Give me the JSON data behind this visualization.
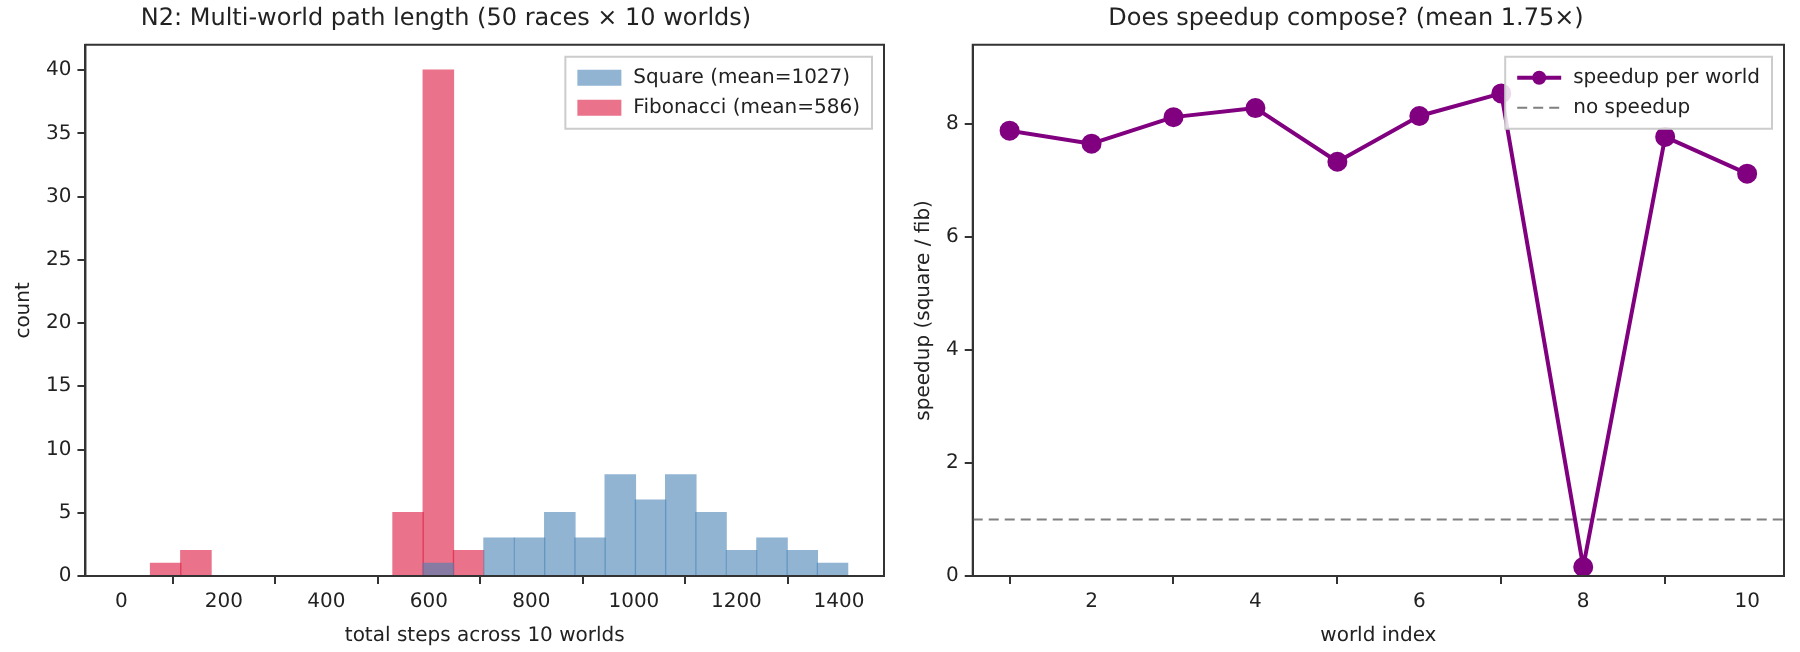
{
  "chart_data": [
    {
      "type": "histogram",
      "title": "N2: Multi-world path length (50 races × 10 worlds)",
      "xlabel": "total steps across 10 worlds",
      "ylabel": "count",
      "bins": [
        57,
        116,
        175,
        234,
        294,
        353,
        412,
        471,
        530,
        589,
        648,
        707,
        767,
        826,
        885,
        944,
        1003,
        1062,
        1121,
        1180,
        1240,
        1299,
        1358,
        1417
      ],
      "series": [
        {
          "name": "Square (mean=1027)",
          "color": "#90b4d2",
          "values": [
            0,
            0,
            0,
            0,
            0,
            0,
            0,
            0,
            0,
            1,
            0,
            3,
            3,
            5,
            3,
            8,
            6,
            8,
            5,
            2,
            3,
            2,
            1
          ]
        },
        {
          "name": "Fibonacci (mean=586)",
          "color": "#ea728a",
          "values": [
            1,
            2,
            0,
            0,
            0,
            0,
            0,
            0,
            5,
            40,
            2,
            0,
            0,
            0,
            0,
            0,
            0,
            0,
            0,
            0,
            0,
            0,
            0
          ]
        }
      ],
      "xlim": [
        -70,
        1488
      ],
      "xticks": [
        0,
        200,
        400,
        600,
        800,
        1000,
        1200,
        1400
      ],
      "ylim": [
        0,
        42
      ],
      "yticks": [
        0,
        5,
        10,
        15,
        20,
        25,
        30,
        35,
        40
      ],
      "legend": "top right"
    },
    {
      "type": "line",
      "title": "Does speedup compose? (mean 1.75×)",
      "xlabel": "world index",
      "ylabel": "speedup (square / fib)",
      "x": [
        1,
        2,
        3,
        4,
        5,
        6,
        7,
        8,
        9,
        10
      ],
      "series": [
        {
          "name": "speedup per world",
          "color": "#800080",
          "values": [
            7.88,
            7.65,
            8.12,
            8.28,
            7.33,
            8.14,
            8.54,
            0.16,
            7.77,
            7.12
          ]
        }
      ],
      "ref_lines": [
        {
          "axis": "y",
          "value": 1,
          "label": "no speedup",
          "color": "#808080",
          "line_style": "dashed"
        }
      ],
      "xlim": [
        0.55,
        10.45
      ],
      "xticks": [
        2,
        4,
        6,
        8,
        10
      ],
      "ylim": [
        0,
        9.4
      ],
      "yticks": [
        0,
        2,
        4,
        6,
        8
      ],
      "marker": "circle",
      "line_style": "solid",
      "legend": "top right"
    }
  ]
}
